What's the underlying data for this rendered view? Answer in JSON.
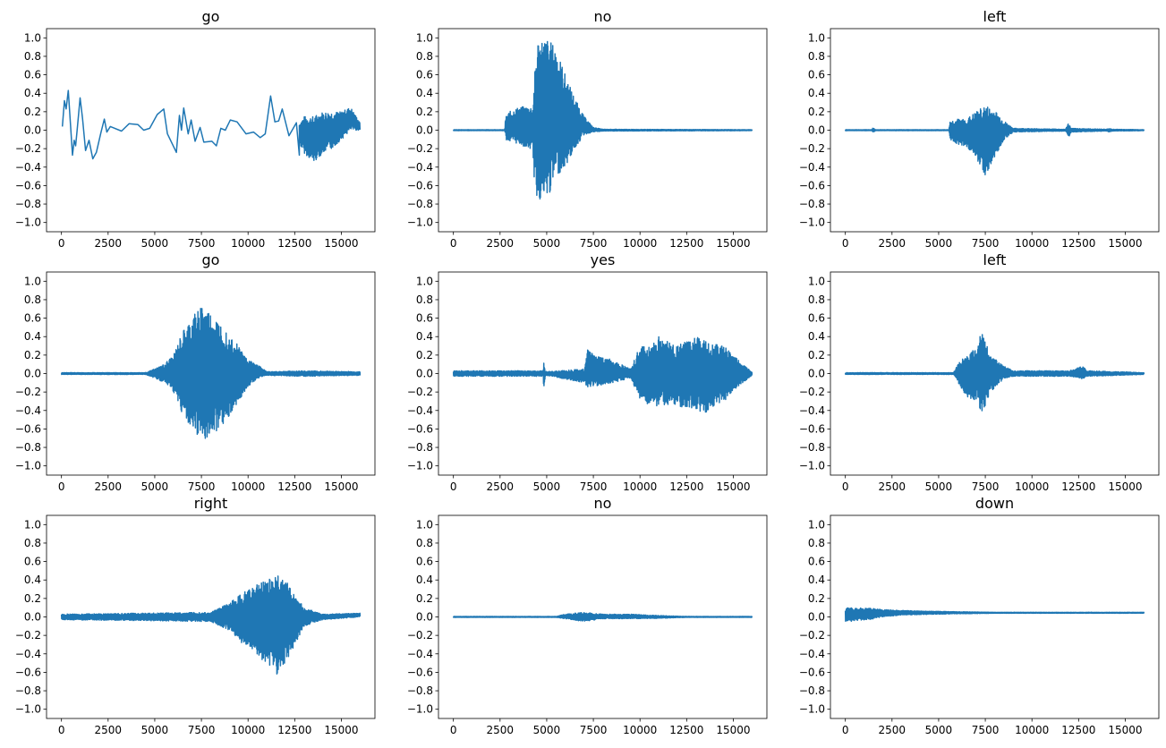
{
  "chart_data": [
    {
      "type": "line",
      "title": "go",
      "trace": {
        "x": [
          48,
          160,
          250,
          365,
          590,
          680,
          760,
          840,
          1000,
          1130,
          1290,
          1480,
          1680,
          1870,
          2110,
          2300,
          2430,
          2620,
          3220,
          3620,
          4100,
          4410,
          4730,
          5130,
          5480,
          5680,
          5920,
          6160,
          6320,
          6430,
          6550,
          6790,
          6950,
          7160,
          7430,
          7630,
          8060,
          8300,
          8540,
          8780,
          9050,
          9410,
          9890,
          10290,
          10650,
          10920,
          11210,
          11440,
          11640,
          11830,
          12190,
          12590,
          12750
        ],
        "y": [
          0.04,
          0.32,
          0.23,
          0.43,
          -0.27,
          -0.11,
          -0.17,
          0.0,
          0.35,
          0.13,
          -0.22,
          -0.11,
          -0.31,
          -0.24,
          -0.03,
          0.12,
          -0.02,
          0.04,
          -0.01,
          0.07,
          0.06,
          0.0,
          0.02,
          0.17,
          0.23,
          -0.04,
          -0.14,
          -0.24,
          0.16,
          0.0,
          0.24,
          -0.04,
          0.11,
          -0.12,
          0.03,
          -0.13,
          -0.12,
          -0.17,
          0.02,
          0.0,
          0.11,
          0.09,
          -0.04,
          -0.02,
          -0.08,
          -0.04,
          0.37,
          0.09,
          0.1,
          0.23,
          -0.06,
          0.08,
          -0.27
        ]
      },
      "envelope": {
        "x": [
          12750,
          13000,
          13500,
          14000,
          14500,
          15000,
          15500,
          16000
        ],
        "upper": [
          0.08,
          0.15,
          0.15,
          0.2,
          0.2,
          0.2,
          0.25,
          0.08
        ],
        "lower": [
          -0.15,
          -0.25,
          -0.35,
          -0.25,
          -0.2,
          -0.1,
          0.0,
          0.0
        ]
      }
    },
    {
      "type": "line",
      "title": "no",
      "envelope": {
        "x": [
          0,
          2750,
          2800,
          3000,
          3500,
          4000,
          4250,
          4350,
          4500,
          5000,
          5500,
          6000,
          6500,
          7000,
          7500,
          8000,
          16000
        ],
        "upper": [
          0.005,
          0.005,
          0.15,
          0.2,
          0.25,
          0.26,
          0.26,
          0.6,
          1.0,
          1.0,
          0.9,
          0.6,
          0.35,
          0.15,
          0.03,
          0.01,
          0.005
        ],
        "lower": [
          -0.005,
          -0.005,
          -0.1,
          -0.13,
          -0.15,
          -0.2,
          -0.22,
          -0.7,
          -0.75,
          -0.78,
          -0.5,
          -0.4,
          -0.2,
          -0.05,
          -0.02,
          -0.01,
          -0.005
        ]
      }
    },
    {
      "type": "line",
      "title": "left",
      "envelope": {
        "x": [
          0,
          1400,
          1500,
          1600,
          5550,
          5600,
          6000,
          6500,
          7000,
          7500,
          8000,
          8500,
          9000,
          11800,
          11950,
          12100,
          14000,
          14100,
          14300,
          16000
        ],
        "upper": [
          0.005,
          0.005,
          0.03,
          0.005,
          0.005,
          0.1,
          0.12,
          0.12,
          0.2,
          0.27,
          0.22,
          0.1,
          0.02,
          0.01,
          0.08,
          0.02,
          0.01,
          0.02,
          0.01,
          0.005
        ],
        "lower": [
          -0.005,
          -0.005,
          -0.03,
          -0.005,
          -0.005,
          -0.1,
          -0.15,
          -0.18,
          -0.3,
          -0.5,
          -0.3,
          -0.1,
          -0.02,
          -0.01,
          -0.08,
          -0.02,
          -0.01,
          -0.02,
          -0.01,
          -0.005
        ]
      }
    },
    {
      "type": "line",
      "title": "go",
      "envelope": {
        "x": [
          0,
          4500,
          5000,
          5500,
          6000,
          6500,
          7000,
          7500,
          8000,
          8500,
          9000,
          9500,
          10000,
          10500,
          11000,
          13000,
          16000
        ],
        "upper": [
          0.01,
          0.01,
          0.05,
          0.1,
          0.2,
          0.45,
          0.6,
          0.76,
          0.65,
          0.55,
          0.45,
          0.3,
          0.15,
          0.1,
          0.02,
          0.03,
          0.02
        ],
        "lower": [
          -0.01,
          -0.01,
          -0.05,
          -0.1,
          -0.2,
          -0.45,
          -0.6,
          -0.72,
          -0.68,
          -0.6,
          -0.45,
          -0.3,
          -0.15,
          -0.05,
          -0.02,
          -0.03,
          -0.02
        ]
      }
    },
    {
      "type": "line",
      "title": "yes",
      "envelope": {
        "x": [
          0,
          4800,
          4850,
          4900,
          5000,
          7000,
          7200,
          7500,
          8500,
          9500,
          10000,
          10500,
          11000,
          12000,
          13000,
          13500,
          14500,
          15500,
          16000
        ],
        "upper": [
          0.03,
          0.03,
          0.17,
          0.03,
          0.02,
          0.05,
          0.28,
          0.2,
          0.15,
          0.05,
          0.3,
          0.3,
          0.4,
          0.3,
          0.4,
          0.35,
          0.3,
          0.1,
          0.02
        ],
        "lower": [
          -0.03,
          -0.03,
          -0.23,
          -0.03,
          -0.02,
          -0.1,
          -0.15,
          -0.15,
          -0.1,
          -0.05,
          -0.3,
          -0.35,
          -0.35,
          -0.35,
          -0.4,
          -0.42,
          -0.3,
          -0.1,
          -0.02
        ]
      }
    },
    {
      "type": "line",
      "title": "left",
      "envelope": {
        "x": [
          0,
          5800,
          6000,
          6500,
          7000,
          7300,
          7800,
          8500,
          9000,
          12000,
          12700,
          13000,
          16000
        ],
        "upper": [
          0.01,
          0.01,
          0.1,
          0.2,
          0.3,
          0.45,
          0.2,
          0.08,
          0.03,
          0.03,
          0.08,
          0.03,
          0.01
        ],
        "lower": [
          -0.01,
          -0.01,
          -0.1,
          -0.25,
          -0.3,
          -0.43,
          -0.2,
          -0.05,
          -0.03,
          -0.03,
          -0.06,
          -0.03,
          -0.01
        ]
      }
    },
    {
      "type": "line",
      "title": "right",
      "envelope": {
        "x": [
          0,
          8000,
          9000,
          10000,
          11000,
          11500,
          12000,
          12500,
          13000,
          14000,
          16000
        ],
        "upper": [
          0.03,
          0.05,
          0.15,
          0.3,
          0.4,
          0.47,
          0.4,
          0.25,
          0.1,
          0.03,
          0.04
        ],
        "lower": [
          -0.03,
          -0.05,
          -0.15,
          -0.35,
          -0.5,
          -0.63,
          -0.5,
          -0.3,
          -0.1,
          -0.03,
          0.0
        ]
      }
    },
    {
      "type": "line",
      "title": "no",
      "envelope": {
        "x": [
          0,
          5500,
          6000,
          7000,
          8000,
          9500,
          11000,
          12500,
          16000
        ],
        "upper": [
          0.005,
          0.005,
          0.03,
          0.05,
          0.03,
          0.03,
          0.015,
          0.005,
          0.005
        ],
        "lower": [
          -0.005,
          -0.005,
          -0.02,
          -0.05,
          -0.02,
          -0.02,
          -0.015,
          -0.005,
          -0.005
        ]
      }
    },
    {
      "type": "line",
      "title": "down",
      "envelope": {
        "x": [
          0,
          1000,
          2000,
          3000,
          5000,
          8000,
          16000
        ],
        "upper": [
          0.1,
          0.1,
          0.08,
          0.07,
          0.06,
          0.05,
          0.05
        ],
        "lower": [
          -0.05,
          -0.04,
          0.0,
          0.02,
          0.03,
          0.04,
          0.04
        ]
      }
    }
  ],
  "axes": {
    "xlim": [
      -800,
      16800
    ],
    "ylim": [
      -1.1,
      1.1
    ],
    "xticks": [
      0,
      2500,
      5000,
      7500,
      10000,
      12500,
      15000
    ],
    "xtick_labels": [
      "0",
      "2500",
      "5000",
      "7500",
      "10000",
      "12500",
      "15000"
    ],
    "yticks": [
      1.0,
      0.8,
      0.6,
      0.4,
      0.2,
      0.0,
      -0.2,
      -0.4,
      -0.6,
      -0.8,
      -1.0
    ],
    "ytick_labels": [
      "1.0",
      "0.8",
      "0.6",
      "0.4",
      "0.2",
      "0.0",
      "−0.2",
      "−0.4",
      "−0.6",
      "−0.8",
      "−1.0"
    ],
    "line_color": "#1f77b4",
    "grid": false
  }
}
